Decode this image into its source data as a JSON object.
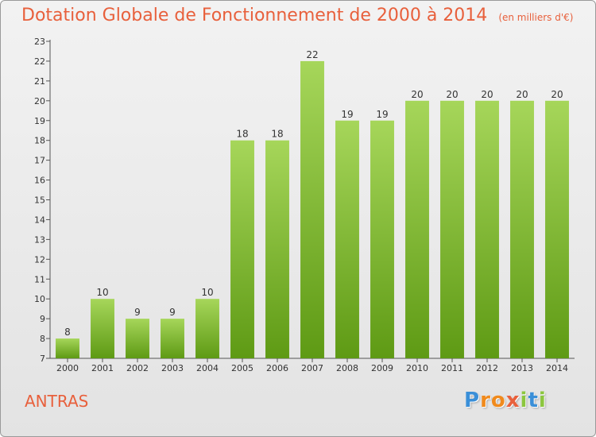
{
  "header": {
    "title": "Dotation Globale de Fonctionnement de 2000 à 2014",
    "unit": "(en milliers d'€)"
  },
  "footer": {
    "commune": "ANTRAS",
    "logo_text": "Proxiti",
    "logo_letters": [
      {
        "ch": "P",
        "color": "#3a8fd8"
      },
      {
        "ch": "r",
        "color": "#f08a1c"
      },
      {
        "ch": "o",
        "color": "#f08a1c"
      },
      {
        "ch": "x",
        "color": "#e8603c"
      },
      {
        "ch": "i",
        "color": "#8cc63f"
      },
      {
        "ch": "t",
        "color": "#3a8fd8"
      },
      {
        "ch": "i",
        "color": "#8cc63f"
      }
    ]
  },
  "colors": {
    "title": "#e8603c",
    "bar_light": "#a6d65a",
    "bar_dark": "#5e9a14",
    "axis": "#555555"
  },
  "chart_data": {
    "type": "bar",
    "title": "Dotation Globale de Fonctionnement de 2000 à 2014",
    "subtitle": "(en milliers d'€)",
    "categories": [
      "2000",
      "2001",
      "2002",
      "2003",
      "2004",
      "2005",
      "2006",
      "2007",
      "2008",
      "2009",
      "2010",
      "2011",
      "2012",
      "2013",
      "2014"
    ],
    "values": [
      8,
      10,
      9,
      9,
      10,
      18,
      18,
      22,
      19,
      19,
      20,
      20,
      20,
      20,
      20
    ],
    "ylim": [
      7,
      23
    ],
    "yticks": [
      7,
      8,
      9,
      10,
      11,
      12,
      13,
      14,
      15,
      16,
      17,
      18,
      19,
      20,
      21,
      22,
      23
    ],
    "grid": false,
    "legend": "none"
  }
}
